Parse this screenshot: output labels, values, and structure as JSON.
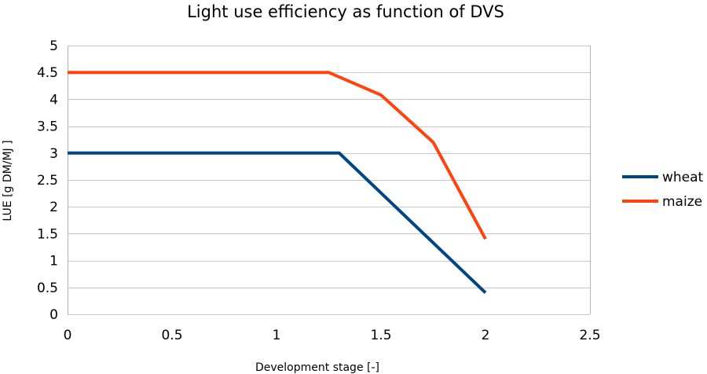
{
  "chart_data": {
    "type": "line",
    "title": "Light use efficiency as function of DVS",
    "xlabel": "Development stage [-]",
    "ylabel": "LUE [g DM/MJ ]",
    "xlim": [
      0,
      2.5
    ],
    "ylim": [
      0,
      5
    ],
    "x_ticks": [
      "0",
      "0.5",
      "1",
      "1.5",
      "2",
      "2.5"
    ],
    "y_ticks": [
      "0",
      "0.5",
      "1",
      "1.5",
      "2",
      "2.5",
      "3",
      "3.5",
      "4",
      "4.5",
      "5"
    ],
    "grid": "horizontal",
    "legend_position": "right",
    "series": [
      {
        "name": "wheat",
        "color": "#004586",
        "points": [
          [
            0,
            3.0
          ],
          [
            1.3,
            3.0
          ],
          [
            2.0,
            0.4
          ]
        ]
      },
      {
        "name": "maize",
        "color": "#ff420e",
        "points": [
          [
            0,
            4.5
          ],
          [
            1.25,
            4.5
          ],
          [
            1.5,
            4.08
          ],
          [
            1.75,
            3.2
          ],
          [
            2.0,
            1.4
          ]
        ]
      }
    ]
  }
}
